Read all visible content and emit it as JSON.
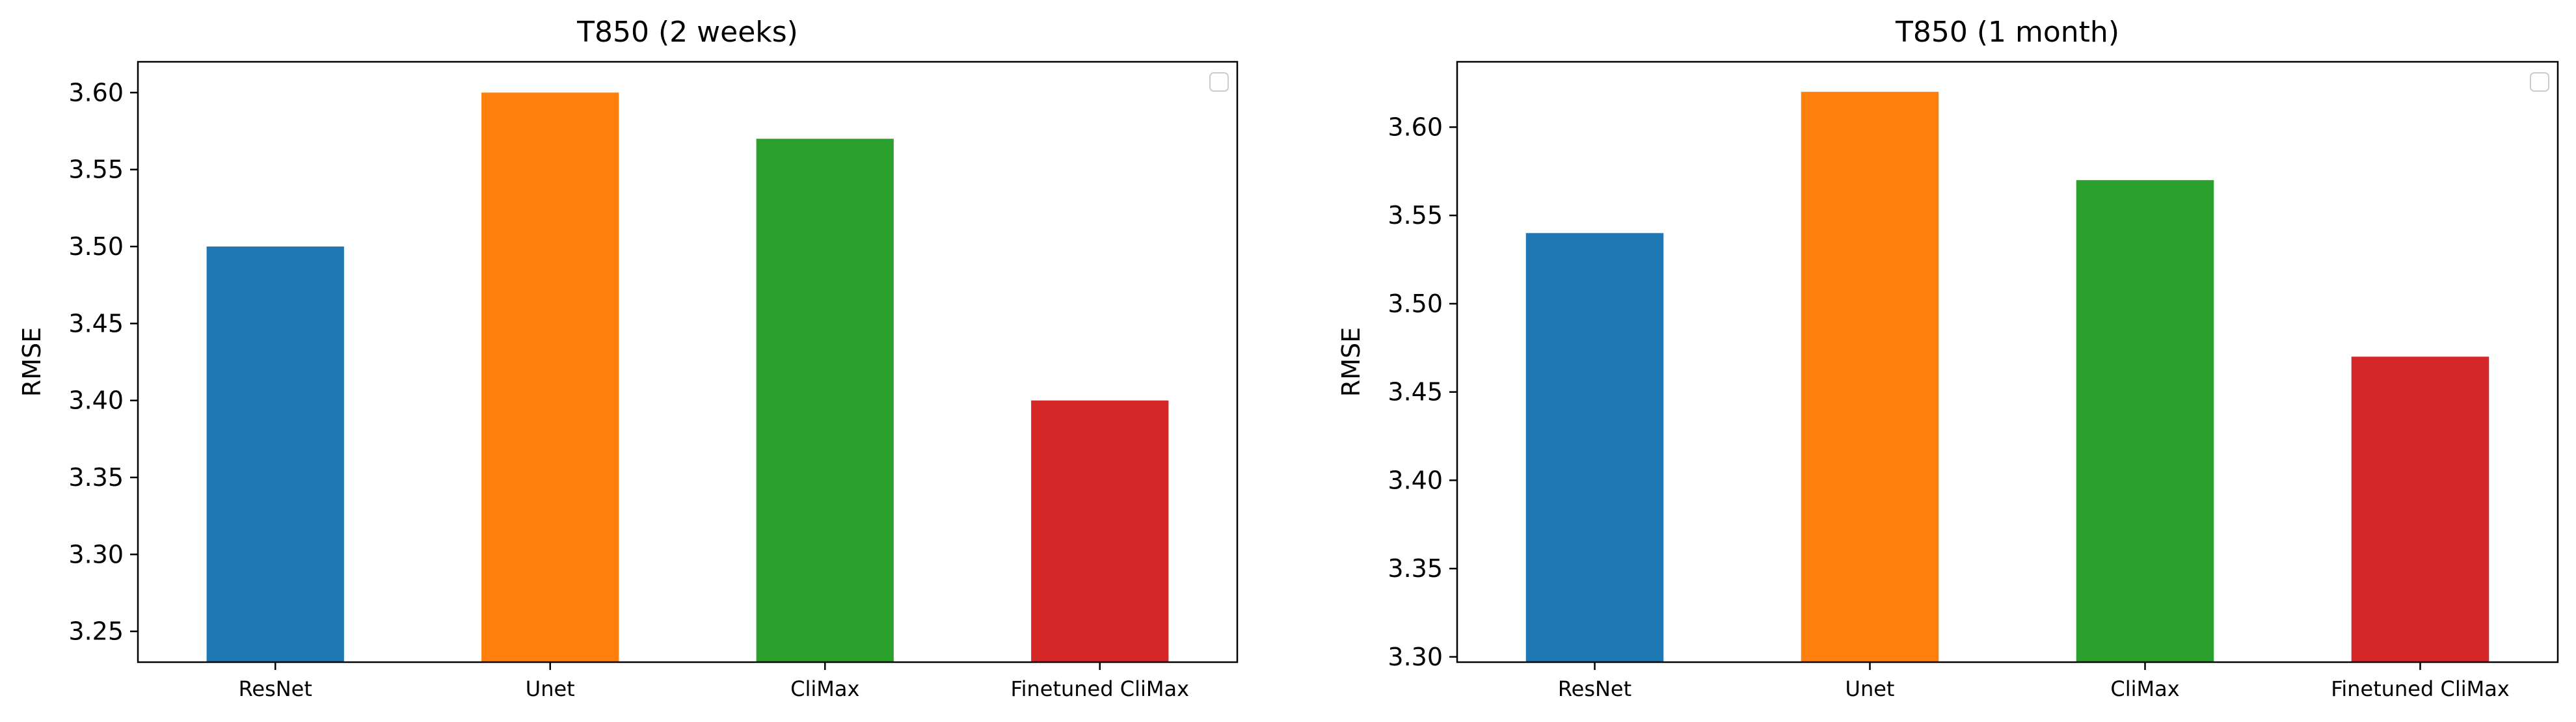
{
  "chart_data": [
    {
      "type": "bar",
      "title": "T850 (2 weeks)",
      "xlabel": "",
      "ylabel": "RMSE",
      "categories": [
        "ResNet",
        "Unet",
        "CliMax",
        "Finetuned CliMax"
      ],
      "values": [
        3.5,
        3.6,
        3.57,
        3.4
      ],
      "colors": [
        "#1f77b4",
        "#ff7f0e",
        "#2ca02c",
        "#d62728"
      ],
      "ylim": [
        3.23,
        3.62
      ],
      "yticks": [
        3.25,
        3.3,
        3.35,
        3.4,
        3.45,
        3.5,
        3.55,
        3.6
      ],
      "ytick_labels": [
        "3.25",
        "3.30",
        "3.35",
        "3.40",
        "3.45",
        "3.50",
        "3.55",
        "3.60"
      ],
      "grid": false,
      "legend": "top-right (empty)"
    },
    {
      "type": "bar",
      "title": "T850 (1 month)",
      "xlabel": "",
      "ylabel": "RMSE",
      "categories": [
        "ResNet",
        "Unet",
        "CliMax",
        "Finetuned CliMax"
      ],
      "values": [
        3.54,
        3.62,
        3.57,
        3.47
      ],
      "colors": [
        "#1f77b4",
        "#ff7f0e",
        "#2ca02c",
        "#d62728"
      ],
      "ylim": [
        3.297,
        3.637
      ],
      "yticks": [
        3.3,
        3.35,
        3.4,
        3.45,
        3.5,
        3.55,
        3.6
      ],
      "ytick_labels": [
        "3.30",
        "3.35",
        "3.40",
        "3.45",
        "3.50",
        "3.55",
        "3.60"
      ],
      "grid": false,
      "legend": "top-right (empty)"
    }
  ]
}
